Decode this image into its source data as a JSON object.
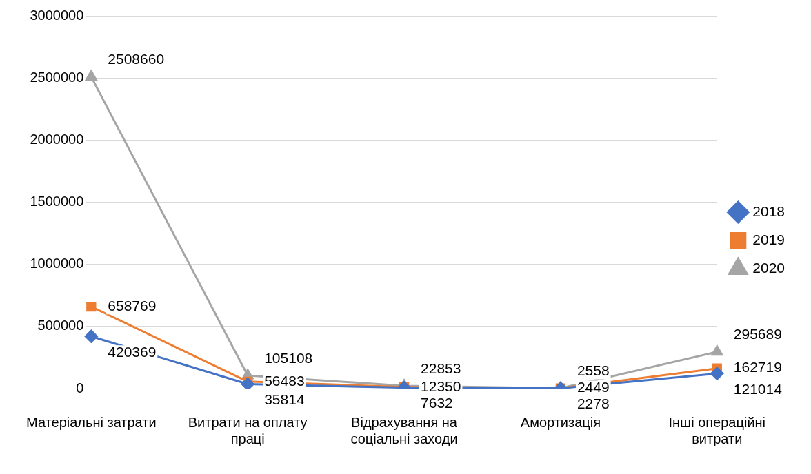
{
  "chart_data": {
    "type": "line",
    "categories": [
      "Матеріальні затрати",
      "Витрати на оплату праці",
      "Відрахування на соціальні заходи",
      "Амортизація",
      "Інші операційні витрати"
    ],
    "series": [
      {
        "name": "2018",
        "color": "#4472c4",
        "marker": "diamond",
        "values": [
          420369,
          35814,
          7632,
          2278,
          121014
        ]
      },
      {
        "name": "2019",
        "color": "#ed7d31",
        "marker": "square",
        "values": [
          658769,
          56483,
          12350,
          2449,
          162719
        ]
      },
      {
        "name": "2020",
        "color": "#a5a5a5",
        "marker": "triangle",
        "values": [
          2508660,
          105108,
          22853,
          2558,
          295689
        ]
      }
    ],
    "ylim": [
      0,
      3000000
    ],
    "yticks": [
      0,
      500000,
      1000000,
      1500000,
      2000000,
      2500000,
      3000000
    ],
    "grid": "y",
    "legend": "right",
    "data_labels": true,
    "line_style": "solid"
  }
}
